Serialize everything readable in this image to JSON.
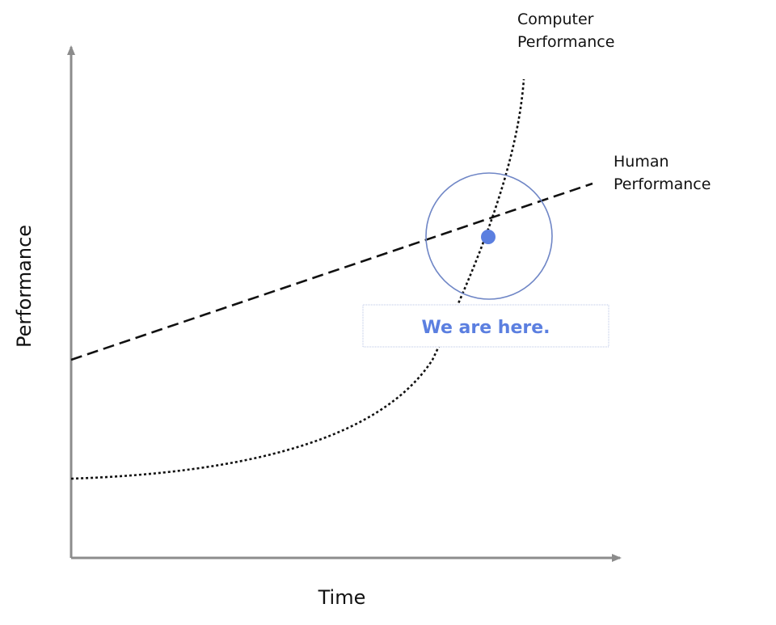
{
  "diagram": {
    "axes": {
      "x_label": "Time",
      "y_label": "Performance"
    },
    "series": [
      {
        "name_line1": "Computer",
        "name_line2": "Performance",
        "style": "dotted",
        "shape": "exponential"
      },
      {
        "name_line1": "Human",
        "name_line2": "Performance",
        "style": "dashed",
        "shape": "linear"
      }
    ],
    "callout": {
      "text": "We are here."
    },
    "colors": {
      "axis": "#8c8c8c",
      "curve": "#111111",
      "highlight_ring": "#6f86c6",
      "marker_dot": "#5b7fe0",
      "callout_text": "#5b7fe0",
      "callout_border": "#b9c6e6",
      "callout_fill": "#ffffff"
    }
  }
}
